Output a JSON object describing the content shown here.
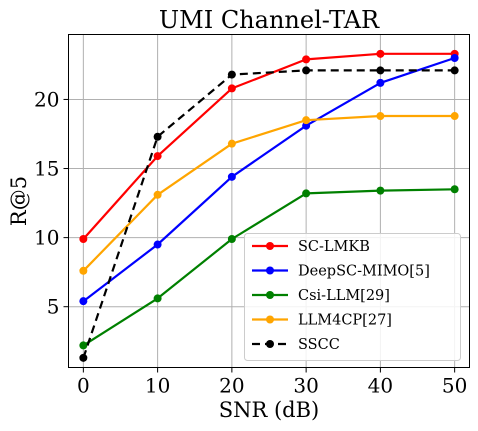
{
  "chart_data": {
    "type": "line",
    "title": "UMI Channel-TAR",
    "xlabel": "SNR (dB)",
    "ylabel": "R@5",
    "x": [
      0,
      10,
      20,
      30,
      40,
      50
    ],
    "xticks": [
      "0",
      "10",
      "20",
      "30",
      "40",
      "50"
    ],
    "yticks": [
      "5",
      "10",
      "15",
      "20"
    ],
    "xlim": [
      -2,
      52
    ],
    "ylim": [
      0.6,
      24.7
    ],
    "grid": true,
    "legend_position": "lower-right",
    "series": [
      {
        "name": "SC-LMKB",
        "color": "#ff0000",
        "style": "solid",
        "values": [
          9.9,
          15.9,
          20.8,
          22.9,
          23.3,
          23.3
        ]
      },
      {
        "name": "DeepSC-MIMO[5]",
        "color": "#0000ff",
        "style": "solid",
        "values": [
          5.4,
          9.5,
          14.4,
          18.1,
          21.2,
          23.0
        ]
      },
      {
        "name": "Csi-LLM[29]",
        "color": "#008000",
        "style": "solid",
        "values": [
          2.2,
          5.6,
          9.9,
          13.2,
          13.4,
          13.5
        ]
      },
      {
        "name": "LLM4CP[27]",
        "color": "#ffa500",
        "style": "solid",
        "values": [
          7.6,
          13.1,
          16.8,
          18.5,
          18.8,
          18.8
        ]
      },
      {
        "name": "SSCC",
        "color": "#000000",
        "style": "dashed",
        "values": [
          1.3,
          17.3,
          21.8,
          22.1,
          22.1,
          22.1
        ]
      }
    ]
  }
}
